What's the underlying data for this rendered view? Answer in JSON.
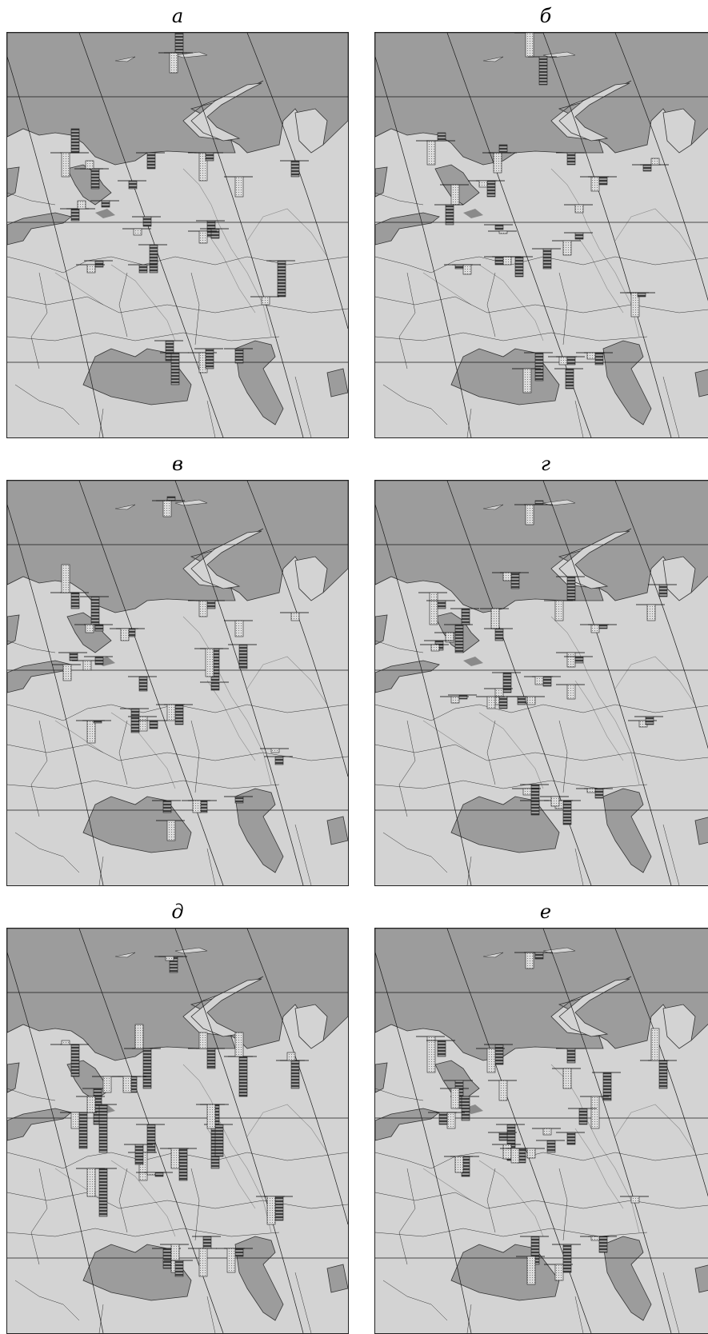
{
  "panels": [
    {
      "id": "a",
      "label": "а"
    },
    {
      "id": "b",
      "label": "б"
    },
    {
      "id": "v",
      "label": "в"
    },
    {
      "id": "g",
      "label": "г"
    },
    {
      "id": "d",
      "label": "д"
    },
    {
      "id": "e",
      "label": "е"
    }
  ],
  "colors": {
    "sea": "#9c9c9c",
    "land": "#d3d3d3",
    "border": "#333333",
    "river": "#8a8a8a",
    "bar_striped": "#6e6e6e",
    "bar_dotted": "#c4c4c4"
  },
  "bar_series": [
    {
      "name": "striped-bars",
      "pattern": "horizontal-stripes"
    },
    {
      "name": "dotted-bars",
      "pattern": "dots"
    }
  ]
}
